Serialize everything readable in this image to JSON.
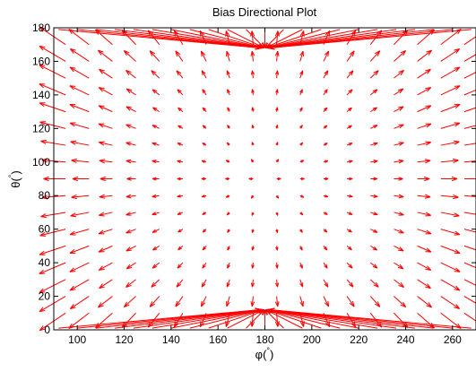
{
  "chart_data": {
    "type": "quiver",
    "title": "Bias Directional Plot",
    "xlabel": {
      "base": "φ(",
      "sup": "°",
      "end": ")"
    },
    "ylabel": {
      "base": "θ(",
      "sup": "°",
      "end": ")"
    },
    "xlim": [
      90,
      270
    ],
    "ylim": [
      0,
      180
    ],
    "x_ticks": [
      100,
      120,
      140,
      160,
      180,
      200,
      220,
      240,
      260
    ],
    "y_ticks": [
      0,
      20,
      40,
      60,
      80,
      100,
      120,
      140,
      160,
      180
    ],
    "grid": false,
    "legend": "none",
    "arrow_color": "#ff0000",
    "field": {
      "center_x": 180,
      "center_y": 90,
      "x_range": [
        92,
        268
      ],
      "y_range": [
        2,
        178
      ],
      "description_of_vectors": "vectors point away from the center region; magnitudes grow toward the poles (theta near 0 and 180) and toward phi near 90 and 270"
    }
  }
}
